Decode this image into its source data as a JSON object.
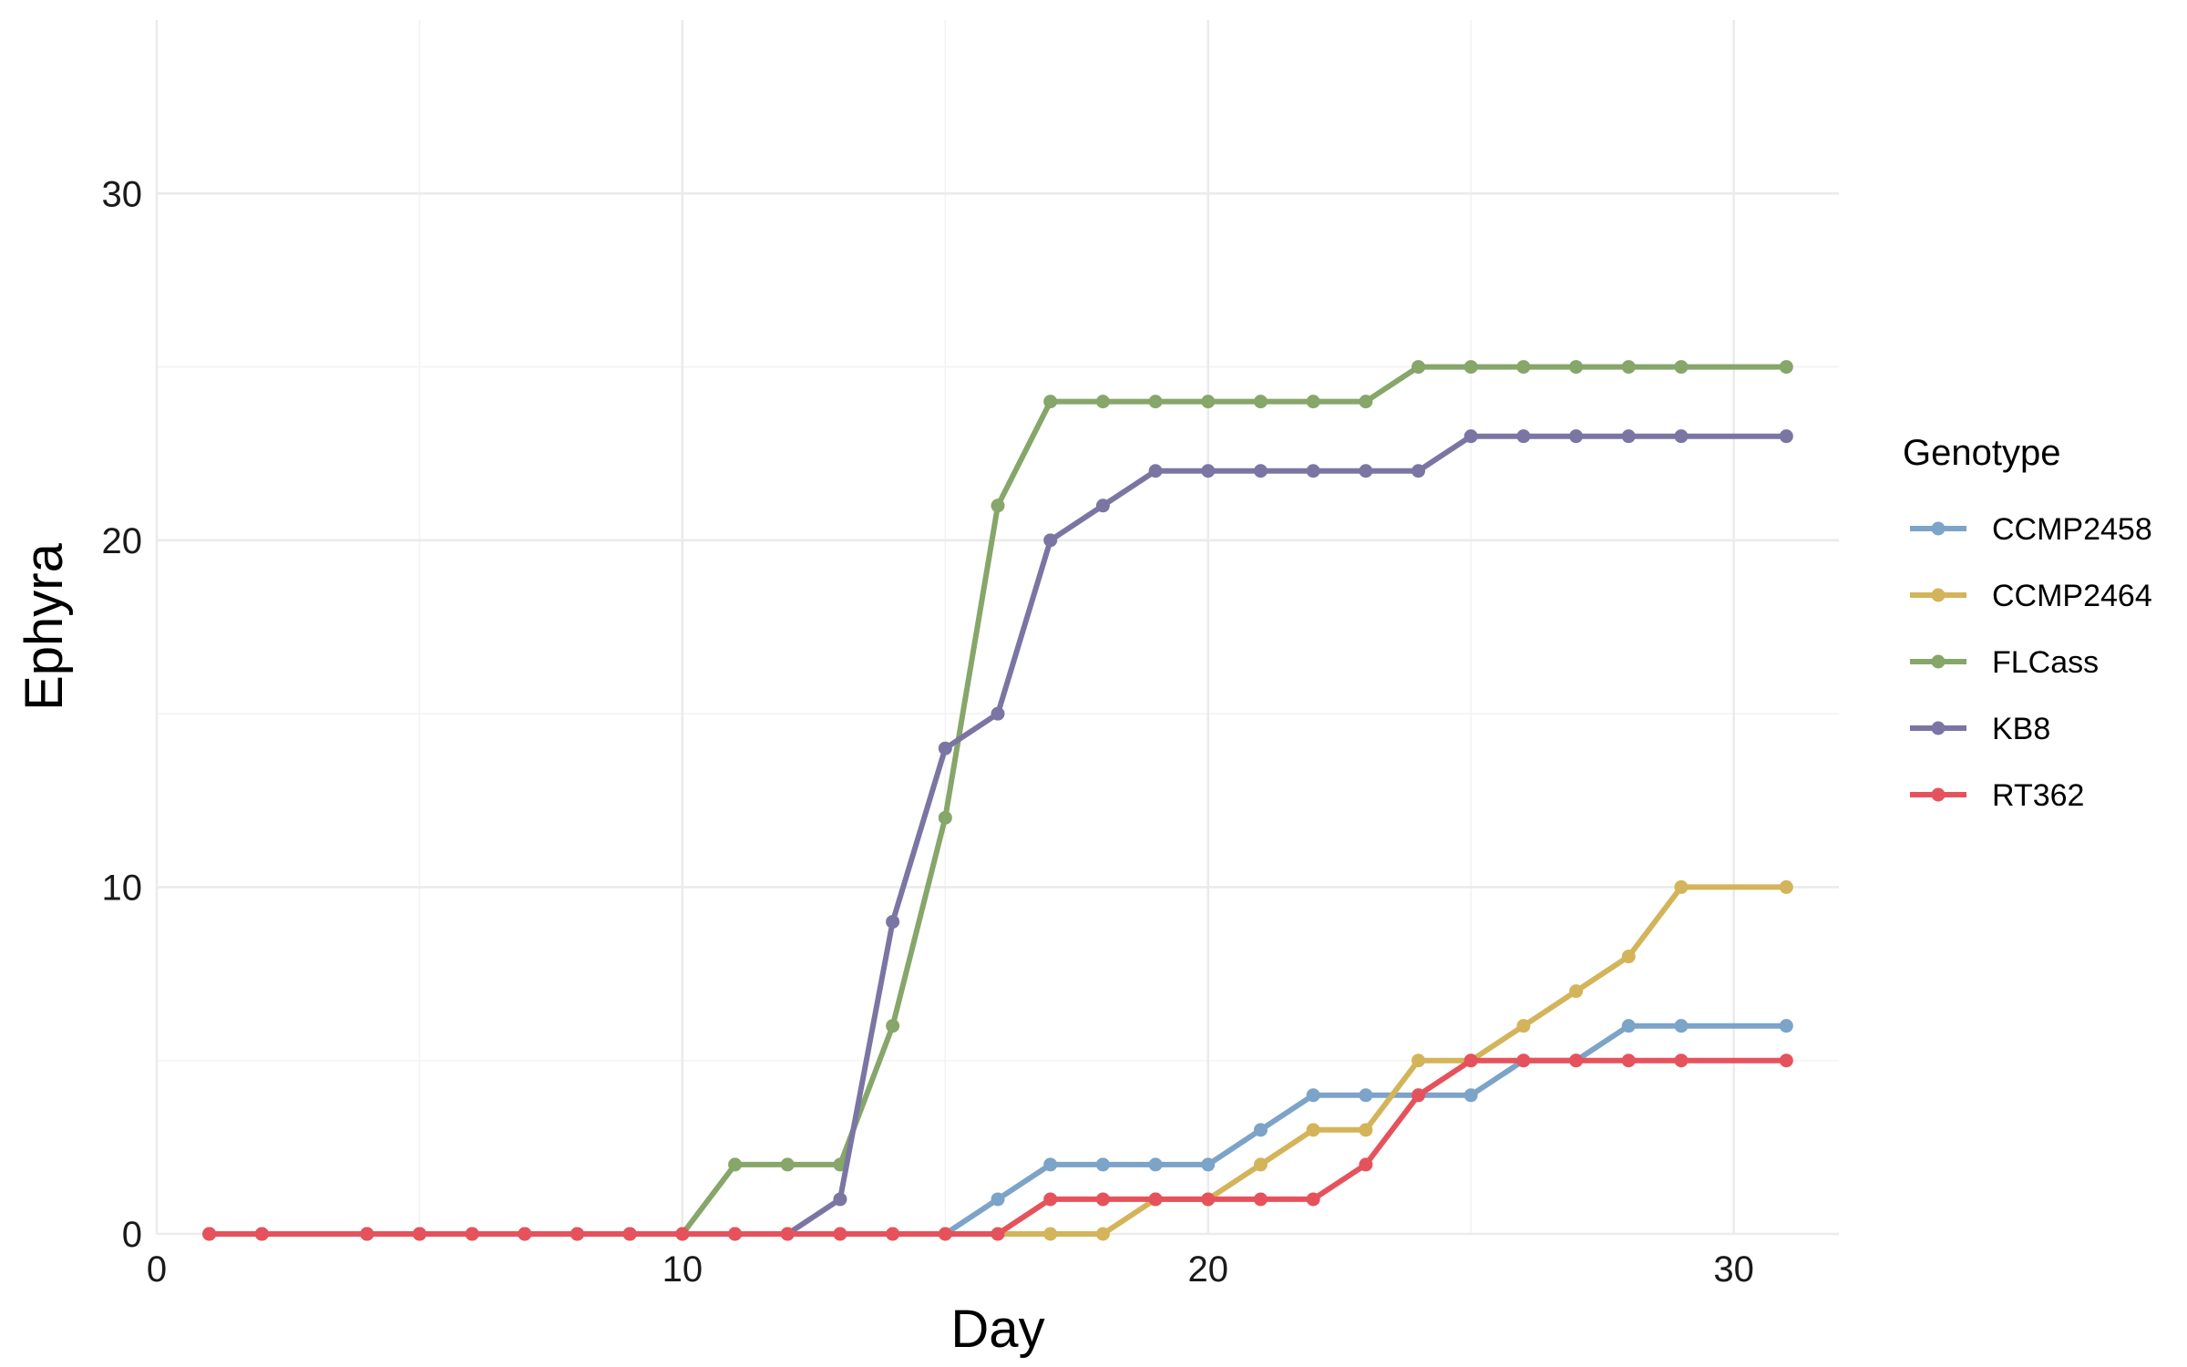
{
  "chart_data": {
    "type": "line",
    "xlabel": "Day",
    "ylabel": "Ephyra",
    "xlim": [
      0,
      32
    ],
    "ylim": [
      0,
      35
    ],
    "xticks": [
      0,
      10,
      20,
      30
    ],
    "yticks": [
      0,
      10,
      20,
      30
    ],
    "grid": true,
    "legend": {
      "title": "Genotype",
      "placement": "right"
    },
    "series": [
      {
        "name": "CCMP2458",
        "color": "#7ca3c8",
        "x": [
          1,
          2,
          4,
          5,
          6,
          7,
          8,
          9,
          10,
          11,
          12,
          13,
          14,
          15,
          16,
          17,
          18,
          19,
          20,
          21,
          22,
          23,
          24,
          25,
          26,
          27,
          28,
          29,
          31
        ],
        "y": [
          0,
          0,
          0,
          0,
          0,
          0,
          0,
          0,
          0,
          0,
          0,
          0,
          0,
          0,
          1,
          2,
          2,
          2,
          2,
          3,
          4,
          4,
          4,
          4,
          5,
          5,
          6,
          6,
          6
        ]
      },
      {
        "name": "CCMP2464",
        "color": "#d4b45a",
        "x": [
          1,
          2,
          4,
          5,
          6,
          7,
          8,
          9,
          10,
          11,
          12,
          13,
          14,
          15,
          16,
          17,
          18,
          19,
          20,
          21,
          22,
          23,
          24,
          25,
          26,
          27,
          28,
          29,
          31
        ],
        "y": [
          0,
          0,
          0,
          0,
          0,
          0,
          0,
          0,
          0,
          0,
          0,
          0,
          0,
          0,
          0,
          0,
          0,
          1,
          1,
          2,
          3,
          3,
          5,
          5,
          6,
          7,
          8,
          10,
          10
        ]
      },
      {
        "name": "FLCass",
        "color": "#86a66a",
        "x": [
          1,
          2,
          4,
          5,
          6,
          7,
          8,
          9,
          10,
          11,
          12,
          13,
          14,
          15,
          16,
          17,
          18,
          19,
          20,
          21,
          22,
          23,
          24,
          25,
          26,
          27,
          28,
          29,
          31
        ],
        "y": [
          0,
          0,
          0,
          0,
          0,
          0,
          0,
          0,
          0,
          2,
          2,
          2,
          6,
          12,
          21,
          24,
          24,
          24,
          24,
          24,
          24,
          24,
          25,
          25,
          25,
          25,
          25,
          25,
          25
        ]
      },
      {
        "name": "KB8",
        "color": "#7a75a3",
        "x": [
          1,
          2,
          4,
          5,
          6,
          7,
          8,
          9,
          10,
          11,
          12,
          13,
          14,
          15,
          16,
          17,
          18,
          19,
          20,
          21,
          22,
          23,
          24,
          25,
          26,
          27,
          28,
          29,
          31
        ],
        "y": [
          0,
          0,
          0,
          0,
          0,
          0,
          0,
          0,
          0,
          0,
          0,
          1,
          9,
          14,
          15,
          20,
          21,
          22,
          22,
          22,
          22,
          22,
          22,
          23,
          23,
          23,
          23,
          23,
          23
        ]
      },
      {
        "name": "RT362",
        "color": "#e6525c",
        "x": [
          1,
          2,
          4,
          5,
          6,
          7,
          8,
          9,
          10,
          11,
          12,
          13,
          14,
          15,
          16,
          17,
          18,
          19,
          20,
          21,
          22,
          23,
          24,
          25,
          26,
          27,
          28,
          29,
          31
        ],
        "y": [
          0,
          0,
          0,
          0,
          0,
          0,
          0,
          0,
          0,
          0,
          0,
          0,
          0,
          0,
          0,
          1,
          1,
          1,
          1,
          1,
          1,
          2,
          4,
          5,
          5,
          5,
          5,
          5,
          5
        ]
      }
    ]
  }
}
